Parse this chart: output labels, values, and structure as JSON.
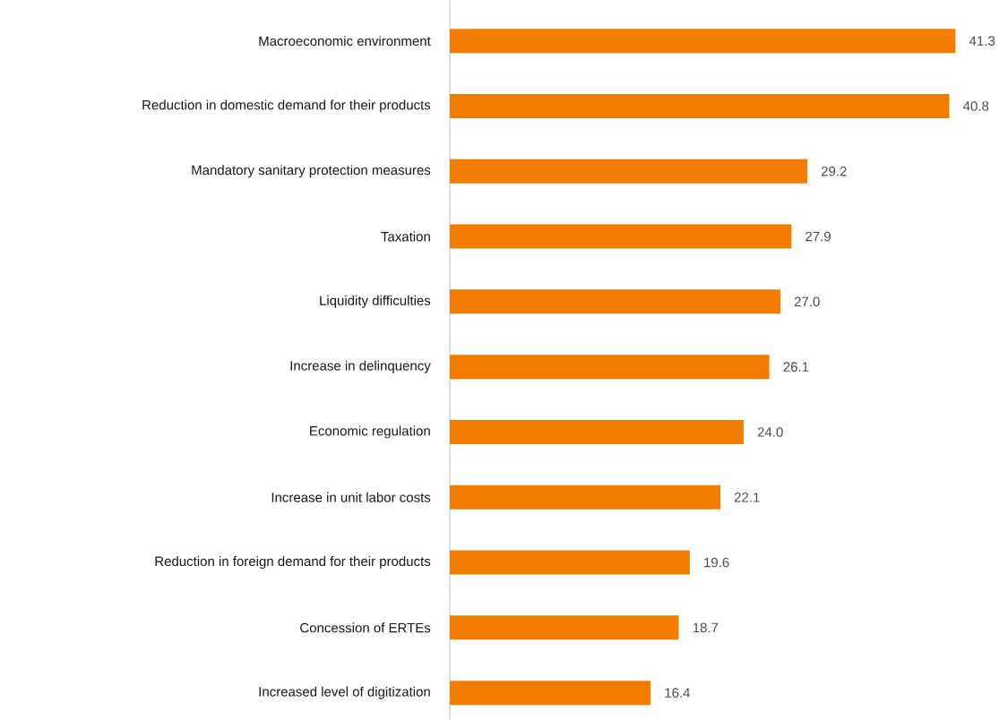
{
  "chart_data": {
    "type": "bar",
    "orientation": "horizontal",
    "categories": [
      "Macroeconomic environment",
      "Reduction in domestic demand for their products",
      "Mandatory sanitary protection measures",
      "Taxation",
      "Liquidity difficulties",
      "Increase in delinquency",
      "Economic regulation",
      "Increase in unit labor costs",
      "Reduction in foreign demand for their products",
      "Concession of ERTEs",
      "Increased level of digitization"
    ],
    "values": [
      41.3,
      40.8,
      29.2,
      27.9,
      27.0,
      26.1,
      24.0,
      22.1,
      19.6,
      18.7,
      16.4
    ],
    "value_labels": [
      "41.3",
      "40.8",
      "29.2",
      "27.9",
      "27.0",
      "26.1",
      "24.0",
      "22.1",
      "19.6",
      "18.7",
      "16.4"
    ],
    "color": "#f27c00"
  }
}
